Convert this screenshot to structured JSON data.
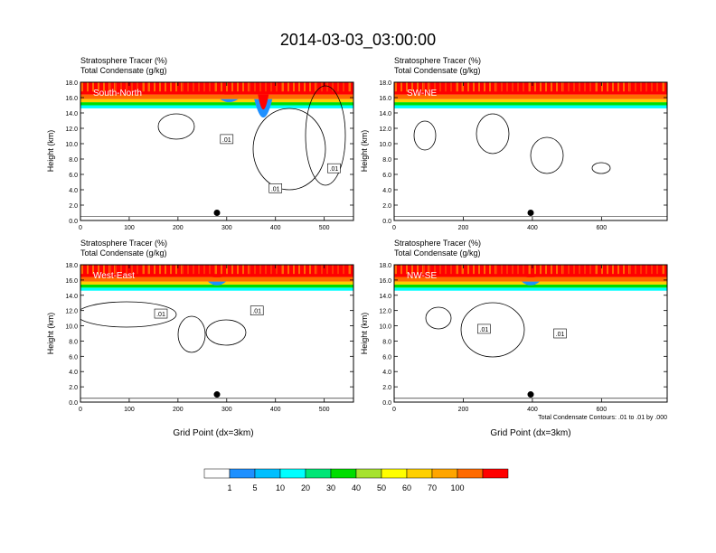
{
  "main_title": "2014-03-03_03:00:00",
  "subtitle_line1": "Stratosphere Tracer   (%)",
  "subtitle_line2": "Total Condensate   (g/kg)",
  "ylabel": "Height (km)",
  "xlabel": "Grid Point (dx=3km)",
  "contour_note": "Total Condensate Contours: .01 to .01 by .000",
  "colorbar": {
    "labels": [
      "1",
      "5",
      "10",
      "20",
      "30",
      "40",
      "50",
      "60",
      "70",
      "100"
    ],
    "colors": [
      "#ffffff",
      "#1e90ff",
      "#00bfff",
      "#00ffff",
      "#00e676",
      "#00dd00",
      "#a6e22e",
      "#ffff00",
      "#ffd000",
      "#ffa500",
      "#ff6a00",
      "#ff0000"
    ]
  },
  "chart_data": [
    {
      "type": "heatmap",
      "panel": "South-North",
      "title": "South-North",
      "xlim": [
        0,
        560
      ],
      "ylim": [
        0,
        18
      ],
      "xticks": [
        0,
        100,
        200,
        300,
        400,
        500
      ],
      "yticks": [
        "0.0",
        "2.0",
        "4.0",
        "6.0",
        "8.0",
        "10.0",
        "12.0",
        "14.0",
        "16.0",
        "18.0"
      ],
      "tracer_bands": [
        {
          "from_km": 14.6,
          "to_km": 15.0,
          "value_pct": 5
        },
        {
          "from_km": 15.0,
          "to_km": 15.4,
          "value_pct": 20
        },
        {
          "from_km": 15.4,
          "to_km": 15.8,
          "value_pct": 50
        },
        {
          "from_km": 15.8,
          "to_km": 16.4,
          "value_pct": 70
        },
        {
          "from_km": 16.4,
          "to_km": 18.0,
          "value_pct": 100
        }
      ],
      "intrusions": [
        {
          "x": 375,
          "bottom_km": 11.0
        },
        {
          "x": 305,
          "bottom_km": 15.0
        }
      ],
      "contour_labels": [
        {
          "text": ".01",
          "x": 300,
          "y_km": 10.6
        },
        {
          "text": ".01",
          "x": 400,
          "y_km": 4.2
        },
        {
          "text": ".01",
          "x": 520,
          "y_km": 6.8
        }
      ],
      "marker": {
        "x": 280,
        "y_km": 1.0
      }
    },
    {
      "type": "heatmap",
      "panel": "SW-NE",
      "title": "SW-NE",
      "xlim": [
        0,
        790
      ],
      "ylim": [
        0,
        18
      ],
      "xticks": [
        0,
        200,
        400,
        600
      ],
      "yticks": [
        "0.0",
        "2.0",
        "4.0",
        "6.0",
        "8.0",
        "10.0",
        "12.0",
        "14.0",
        "16.0",
        "18.0"
      ],
      "tracer_bands": [
        {
          "from_km": 14.6,
          "to_km": 15.0,
          "value_pct": 5
        },
        {
          "from_km": 15.0,
          "to_km": 15.4,
          "value_pct": 20
        },
        {
          "from_km": 15.4,
          "to_km": 15.8,
          "value_pct": 50
        },
        {
          "from_km": 15.8,
          "to_km": 16.4,
          "value_pct": 70
        },
        {
          "from_km": 16.4,
          "to_km": 18.0,
          "value_pct": 100
        }
      ],
      "intrusions": [],
      "contour_labels": [],
      "marker": {
        "x": 395,
        "y_km": 1.0
      }
    },
    {
      "type": "heatmap",
      "panel": "West-East",
      "title": "West-East",
      "xlim": [
        0,
        560
      ],
      "ylim": [
        0,
        18
      ],
      "xticks": [
        0,
        100,
        200,
        300,
        400,
        500
      ],
      "yticks": [
        "0.0",
        "2.0",
        "4.0",
        "6.0",
        "8.0",
        "10.0",
        "12.0",
        "14.0",
        "16.0",
        "18.0"
      ],
      "tracer_bands": [
        {
          "from_km": 14.6,
          "to_km": 15.0,
          "value_pct": 5
        },
        {
          "from_km": 15.0,
          "to_km": 15.4,
          "value_pct": 20
        },
        {
          "from_km": 15.4,
          "to_km": 15.8,
          "value_pct": 50
        },
        {
          "from_km": 15.8,
          "to_km": 16.4,
          "value_pct": 70
        },
        {
          "from_km": 16.4,
          "to_km": 18.0,
          "value_pct": 100
        }
      ],
      "intrusions": [
        {
          "x": 280,
          "bottom_km": 14.8
        }
      ],
      "contour_labels": [
        {
          "text": ".01",
          "x": 165,
          "y_km": 11.6
        },
        {
          "text": ".01",
          "x": 362,
          "y_km": 12.0
        }
      ],
      "marker": {
        "x": 280,
        "y_km": 1.0
      }
    },
    {
      "type": "heatmap",
      "panel": "NW-SE",
      "title": "NW-SE",
      "xlim": [
        0,
        790
      ],
      "ylim": [
        0,
        18
      ],
      "xticks": [
        0,
        200,
        400,
        600
      ],
      "yticks": [
        "0.0",
        "2.0",
        "4.0",
        "6.0",
        "8.0",
        "10.0",
        "12.0",
        "14.0",
        "16.0",
        "18.0"
      ],
      "tracer_bands": [
        {
          "from_km": 14.6,
          "to_km": 15.0,
          "value_pct": 5
        },
        {
          "from_km": 15.0,
          "to_km": 15.4,
          "value_pct": 20
        },
        {
          "from_km": 15.4,
          "to_km": 15.8,
          "value_pct": 50
        },
        {
          "from_km": 15.8,
          "to_km": 16.4,
          "value_pct": 70
        },
        {
          "from_km": 16.4,
          "to_km": 18.0,
          "value_pct": 100
        }
      ],
      "intrusions": [
        {
          "x": 395,
          "bottom_km": 14.8
        }
      ],
      "contour_labels": [
        {
          "text": ".01",
          "x": 260,
          "y_km": 9.6
        },
        {
          "text": ".01",
          "x": 480,
          "y_km": 9.0
        }
      ],
      "marker": {
        "x": 395,
        "y_km": 1.0
      }
    }
  ]
}
